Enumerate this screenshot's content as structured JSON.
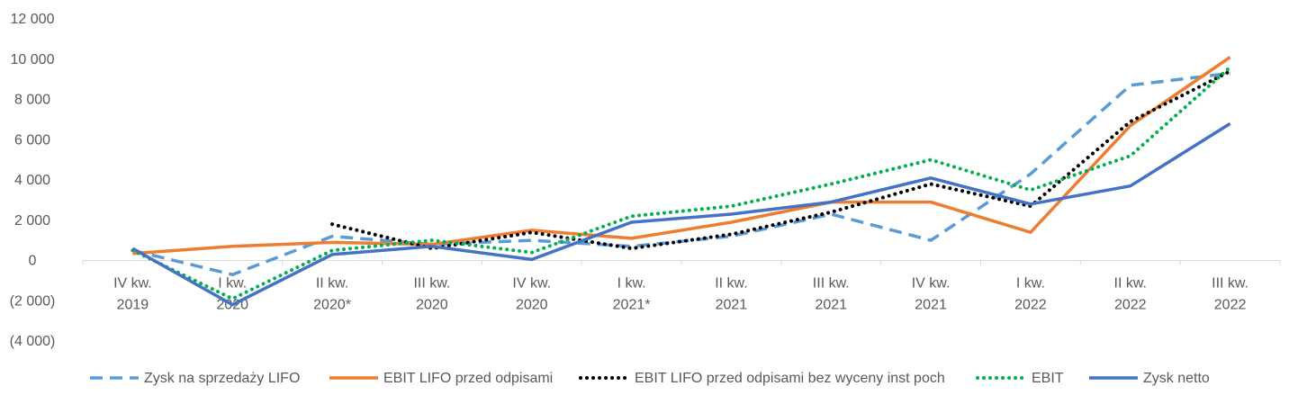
{
  "chart_data": {
    "type": "line",
    "categories": [
      [
        "IV kw.",
        "2019"
      ],
      [
        "I kw.",
        "2020"
      ],
      [
        "II kw.",
        "2020*"
      ],
      [
        "III kw.",
        "2020"
      ],
      [
        "IV kw.",
        "2020"
      ],
      [
        "I kw.",
        "2021*"
      ],
      [
        "II kw.",
        "2021"
      ],
      [
        "III kw.",
        "2021"
      ],
      [
        "IV kw.",
        "2021"
      ],
      [
        "I kw.",
        "2022"
      ],
      [
        "II kw.",
        "2022"
      ],
      [
        "III kw.",
        "2022"
      ]
    ],
    "y_ticks": [
      {
        "value": 12000,
        "label": "12 000"
      },
      {
        "value": 10000,
        "label": "10 000"
      },
      {
        "value": 8000,
        "label": "8 000"
      },
      {
        "value": 6000,
        "label": "6 000"
      },
      {
        "value": 4000,
        "label": "4 000"
      },
      {
        "value": 2000,
        "label": "2 000"
      },
      {
        "value": 0,
        "label": "0"
      },
      {
        "value": -2000,
        "label": "(2 000)"
      },
      {
        "value": -4000,
        "label": "(4 000)"
      }
    ],
    "ylim": [
      -4000,
      12000
    ],
    "grid": false,
    "legend_position": "bottom",
    "series": [
      {
        "name": "Zysk na sprzedaży LIFO",
        "color": "#5B9BD5",
        "dash": "dashed",
        "values": [
          500,
          -700,
          1200,
          800,
          1000,
          700,
          1200,
          2300,
          1000,
          4300,
          8700,
          9300
        ]
      },
      {
        "name": "EBIT LIFO przed odpisami",
        "color": "#ED7D31",
        "dash": "solid",
        "values": [
          350,
          700,
          900,
          800,
          1500,
          1100,
          1900,
          2900,
          2900,
          1400,
          6700,
          10100
        ]
      },
      {
        "name": "EBIT LIFO przed odpisami bez wyceny inst poch",
        "color": "#000000",
        "dash": "dotted",
        "values": [
          null,
          null,
          1800,
          600,
          1400,
          600,
          1300,
          2400,
          3800,
          2700,
          6900,
          9400
        ]
      },
      {
        "name": "EBIT",
        "color": "#00B050",
        "dash": "dotted",
        "values": [
          500,
          -1900,
          500,
          1000,
          400,
          2200,
          2700,
          3800,
          5000,
          3500,
          5200,
          9600
        ]
      },
      {
        "name": "Zysk netto",
        "color": "#4472C4",
        "dash": "solid",
        "values": [
          600,
          -2200,
          300,
          700,
          50,
          1900,
          2300,
          2900,
          4100,
          2800,
          3700,
          6800
        ]
      }
    ]
  }
}
